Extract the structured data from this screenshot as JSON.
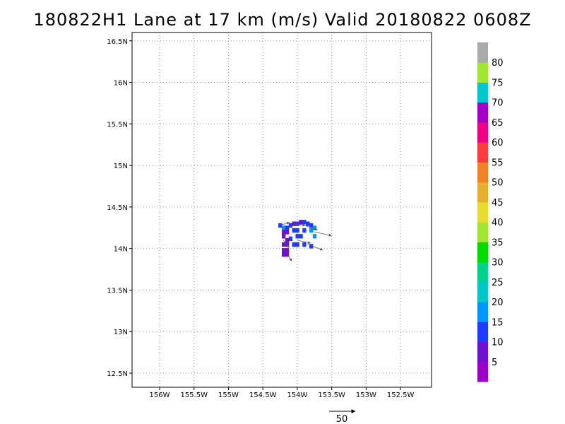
{
  "title": "180822H1 Lane at 17 km (m/s) Valid 20180822 0608Z",
  "map": {
    "lon_range": [
      -156.4,
      -152.05
    ],
    "lat_range": [
      12.33,
      16.6
    ],
    "lon_ticks": [
      {
        "value": -156.0,
        "label": "156W"
      },
      {
        "value": -155.5,
        "label": "155.5W"
      },
      {
        "value": -155.0,
        "label": "155W"
      },
      {
        "value": -154.5,
        "label": "154.5W"
      },
      {
        "value": -154.0,
        "label": "154W"
      },
      {
        "value": -153.5,
        "label": "153.5W"
      },
      {
        "value": -153.0,
        "label": "153W"
      },
      {
        "value": -152.5,
        "label": "152.5W"
      }
    ],
    "lat_ticks": [
      {
        "value": 12.5,
        "label": "12.5N"
      },
      {
        "value": 13.0,
        "label": "13N"
      },
      {
        "value": 13.5,
        "label": "13.5N"
      },
      {
        "value": 14.0,
        "label": "14N"
      },
      {
        "value": 14.5,
        "label": "14.5N"
      },
      {
        "value": 15.0,
        "label": "15N"
      },
      {
        "value": 15.5,
        "label": "15.5N"
      },
      {
        "value": 16.0,
        "label": "16N"
      },
      {
        "value": 16.5,
        "label": "16.5N"
      }
    ],
    "grid": "dotted",
    "wind_cells": [
      {
        "lon": -154.25,
        "lat": 14.28,
        "speed": 18
      },
      {
        "lon": -154.2,
        "lat": 14.25,
        "speed": 20
      },
      {
        "lon": -154.15,
        "lat": 14.25,
        "speed": 18
      },
      {
        "lon": -154.1,
        "lat": 14.28,
        "speed": 15
      },
      {
        "lon": -154.05,
        "lat": 14.3,
        "speed": 13
      },
      {
        "lon": -154.0,
        "lat": 14.3,
        "speed": 15
      },
      {
        "lon": -153.95,
        "lat": 14.32,
        "speed": 13
      },
      {
        "lon": -153.9,
        "lat": 14.32,
        "speed": 15
      },
      {
        "lon": -153.85,
        "lat": 14.3,
        "speed": 17
      },
      {
        "lon": -153.8,
        "lat": 14.28,
        "speed": 19
      },
      {
        "lon": -153.75,
        "lat": 14.25,
        "speed": 22
      },
      {
        "lon": -154.2,
        "lat": 14.2,
        "speed": 12
      },
      {
        "lon": -154.15,
        "lat": 14.2,
        "speed": 14
      },
      {
        "lon": -154.05,
        "lat": 14.22,
        "speed": 16
      },
      {
        "lon": -154.0,
        "lat": 14.22,
        "speed": 18
      },
      {
        "lon": -153.9,
        "lat": 14.22,
        "speed": 17
      },
      {
        "lon": -153.8,
        "lat": 14.22,
        "speed": 20
      },
      {
        "lon": -154.2,
        "lat": 14.15,
        "speed": 11
      },
      {
        "lon": -154.15,
        "lat": 14.1,
        "speed": 12
      },
      {
        "lon": -154.1,
        "lat": 14.12,
        "speed": 15
      },
      {
        "lon": -154.0,
        "lat": 14.15,
        "speed": 16
      },
      {
        "lon": -153.95,
        "lat": 14.15,
        "speed": 17
      },
      {
        "lon": -153.75,
        "lat": 14.15,
        "speed": 20
      },
      {
        "lon": -154.2,
        "lat": 14.05,
        "speed": 12
      },
      {
        "lon": -154.15,
        "lat": 14.05,
        "speed": 12
      },
      {
        "lon": -154.05,
        "lat": 14.05,
        "speed": 16
      },
      {
        "lon": -154.0,
        "lat": 14.05,
        "speed": 16
      },
      {
        "lon": -153.9,
        "lat": 14.05,
        "speed": 18
      },
      {
        "lon": -153.8,
        "lat": 14.03,
        "speed": 18
      },
      {
        "lon": -154.2,
        "lat": 13.98,
        "speed": 12
      },
      {
        "lon": -154.15,
        "lat": 13.98,
        "speed": 11
      },
      {
        "lon": -154.2,
        "lat": 13.93,
        "speed": 12
      },
      {
        "lon": -154.15,
        "lat": 13.93,
        "speed": 12
      }
    ],
    "wind_vectors": [
      {
        "lon": -154.25,
        "lat": 14.28,
        "u": 10,
        "v": 3
      },
      {
        "lon": -154.05,
        "lat": 14.3,
        "u": 12,
        "v": -2
      },
      {
        "lon": -153.9,
        "lat": 14.28,
        "u": 14,
        "v": -5
      },
      {
        "lon": -153.75,
        "lat": 14.2,
        "u": 18,
        "v": -4
      },
      {
        "lon": -154.2,
        "lat": 14.1,
        "u": 6,
        "v": -8
      },
      {
        "lon": -154.0,
        "lat": 14.1,
        "u": 14,
        "v": -3
      },
      {
        "lon": -153.85,
        "lat": 14.05,
        "u": 16,
        "v": -6
      },
      {
        "lon": -154.15,
        "lat": 13.95,
        "u": 5,
        "v": -9
      }
    ]
  },
  "colorbar": {
    "levels": [
      {
        "color": "#9b00c8",
        "label": "5"
      },
      {
        "color": "#7010d0",
        "label": "10"
      },
      {
        "color": "#1e3cff",
        "label": "15"
      },
      {
        "color": "#0096ff",
        "label": "20"
      },
      {
        "color": "#00c8c8",
        "label": "25"
      },
      {
        "color": "#00d28c",
        "label": "30"
      },
      {
        "color": "#00dc00",
        "label": "35"
      },
      {
        "color": "#a0e632",
        "label": "40"
      },
      {
        "color": "#e6dc32",
        "label": "45"
      },
      {
        "color": "#e6af2d",
        "label": "50"
      },
      {
        "color": "#f08228",
        "label": "55"
      },
      {
        "color": "#fa3c3c",
        "label": "60"
      },
      {
        "color": "#f00082",
        "label": "65"
      },
      {
        "color": "#a000c8",
        "label": "70"
      },
      {
        "color": "#00c8c8",
        "label": "75"
      },
      {
        "color": "#a0e632",
        "label": "80"
      },
      {
        "color": "#aaaaaa",
        "label": ""
      }
    ]
  },
  "reference_vector": {
    "value": 50,
    "label": "50"
  }
}
